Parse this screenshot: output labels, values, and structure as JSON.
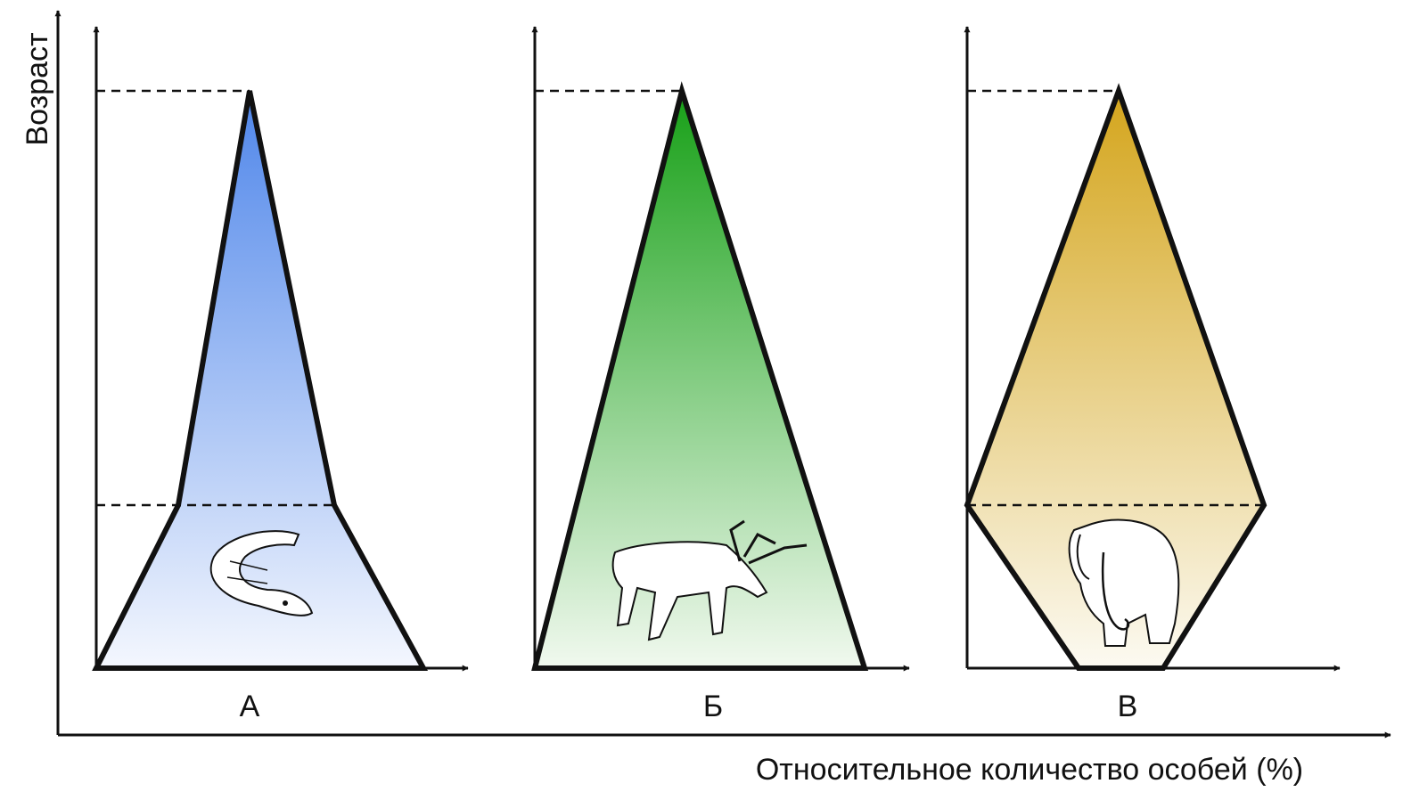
{
  "y_axis_label": "Возраст",
  "x_axis_label": "Относительное количество особей (%)",
  "panels": [
    {
      "label": "А"
    },
    {
      "label": "Б"
    },
    {
      "label": "В"
    }
  ]
}
